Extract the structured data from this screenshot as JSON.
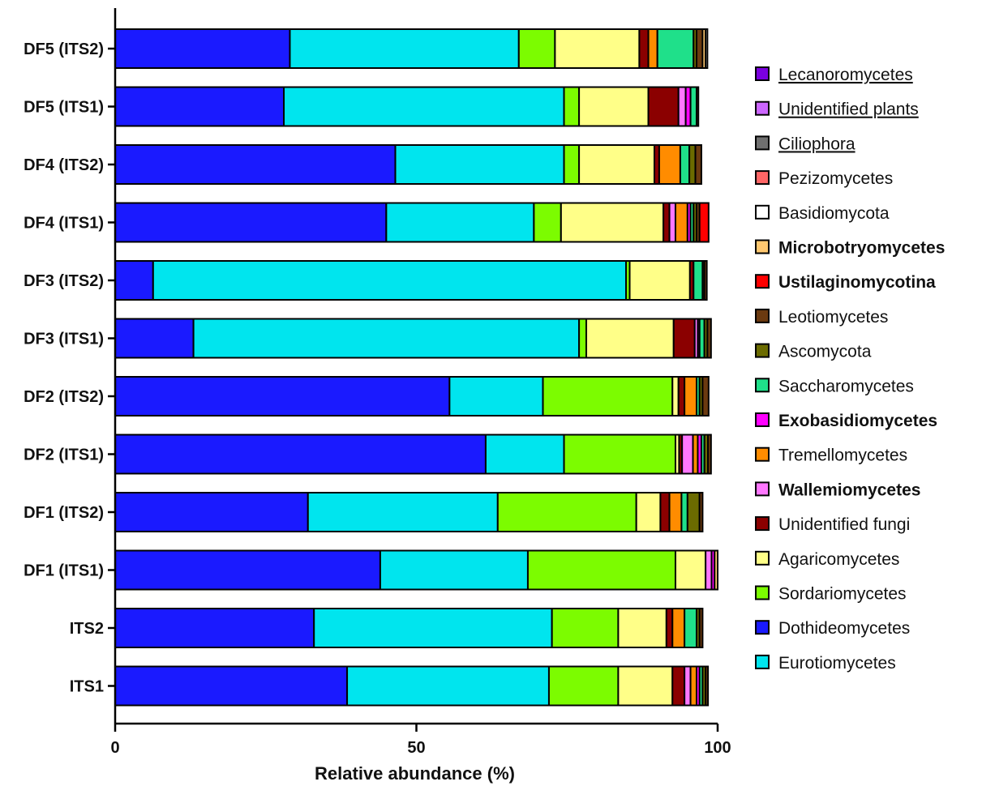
{
  "chart_data": {
    "type": "bar",
    "orientation": "horizontal",
    "stacked": true,
    "xlabel": "Relative abundance (%)",
    "xlim": [
      0,
      100
    ],
    "xticks": [
      0,
      50,
      100
    ],
    "legend_position": "right",
    "categories": [
      "DF5 (ITS2)",
      "DF5 (ITS1)",
      "DF4 (ITS2)",
      "DF4 (ITS1)",
      "DF3 (ITS2)",
      "DF3 (ITS1)",
      "DF2 (ITS2)",
      "DF2 (ITS1)",
      "DF1 (ITS2)",
      "DF1 (ITS1)",
      "ITS2",
      "ITS1"
    ],
    "series": [
      {
        "name": "Dothideomycetes",
        "color": "#1a1aff",
        "values": [
          29.0,
          28.0,
          46.5,
          45.0,
          6.3,
          13.0,
          55.5,
          61.5,
          32.0,
          44.0,
          33.0,
          38.5
        ]
      },
      {
        "name": "Eurotiomycetes",
        "color": "#00e5ee",
        "values": [
          38.0,
          46.5,
          28.0,
          24.5,
          78.5,
          64.0,
          15.5,
          13.0,
          31.5,
          24.5,
          39.5,
          33.5
        ]
      },
      {
        "name": "Sordariomycetes",
        "color": "#7cfc00",
        "values": [
          6.0,
          2.5,
          2.5,
          4.5,
          0.6,
          1.2,
          21.5,
          18.5,
          23.0,
          24.5,
          11.0,
          11.5
        ]
      },
      {
        "name": "Agaricomycetes",
        "color": "#ffff88",
        "values": [
          14.0,
          11.5,
          12.5,
          17.0,
          10.0,
          14.5,
          1.0,
          0.6,
          4.0,
          5.0,
          8.0,
          9.0
        ]
      },
      {
        "name": "Unidentified fungi",
        "color": "#8b0000",
        "values": [
          1.5,
          5.0,
          0.8,
          1.0,
          0.6,
          3.5,
          1.0,
          0.5,
          1.5,
          0.0,
          1.0,
          2.0
        ]
      },
      {
        "name": "Wallemiomycetes",
        "color": "#ff77ff",
        "values": [
          0.0,
          1.2,
          0.0,
          1.0,
          0.0,
          0.5,
          0.0,
          1.8,
          0.0,
          1.0,
          0.0,
          1.0
        ]
      },
      {
        "name": "Tremellomycetes",
        "color": "#ff8c00",
        "values": [
          1.5,
          0.0,
          3.5,
          2.0,
          0.0,
          0.0,
          2.0,
          0.8,
          2.0,
          0.0,
          2.0,
          1.0
        ]
      },
      {
        "name": "Exobasidiomycetes",
        "color": "#ff00ff",
        "values": [
          0.0,
          0.8,
          0.0,
          0.5,
          0.0,
          0.3,
          0.0,
          0.6,
          0.0,
          0.5,
          0.0,
          0.5
        ]
      },
      {
        "name": "Saccharomycetes",
        "color": "#1fe08a",
        "values": [
          6.0,
          1.0,
          1.5,
          0.5,
          1.5,
          0.8,
          0.5,
          0.5,
          1.0,
          0.0,
          2.0,
          0.5
        ]
      },
      {
        "name": "Ascomycota",
        "color": "#6b6b00",
        "values": [
          0.5,
          0.0,
          1.0,
          0.5,
          0.3,
          0.5,
          0.5,
          0.6,
          2.0,
          0.0,
          0.5,
          0.5
        ]
      },
      {
        "name": "Leotiomycetes",
        "color": "#6b3a10",
        "values": [
          1.0,
          0.3,
          1.0,
          0.5,
          0.4,
          0.6,
          1.0,
          0.5,
          0.5,
          0.0,
          0.5,
          0.4
        ]
      },
      {
        "name": "Ustilaginomycotina",
        "color": "#ff0000",
        "values": [
          0.0,
          0.0,
          0.0,
          1.5,
          0.0,
          0.0,
          0.0,
          0.0,
          0.0,
          0.0,
          0.0,
          0.0
        ]
      },
      {
        "name": "Microbotryomycetes",
        "color": "#ffc870",
        "values": [
          0.5,
          0.0,
          0.0,
          0.0,
          0.0,
          0.0,
          0.0,
          0.0,
          0.0,
          0.5,
          0.0,
          0.0
        ]
      },
      {
        "name": "Basidiomycota",
        "color": "#ffffff",
        "values": [
          0.3,
          0.0,
          0.0,
          0.0,
          0.0,
          0.0,
          0.0,
          0.0,
          0.0,
          0.0,
          0.0,
          0.0
        ]
      },
      {
        "name": "Pezizomycetes",
        "color": "#ff6666",
        "values": [
          0.0,
          0.0,
          0.0,
          0.0,
          0.0,
          0.0,
          0.0,
          0.0,
          0.0,
          0.0,
          0.0,
          0.0
        ]
      },
      {
        "name": "Ciliophora",
        "color": "#707070",
        "values": [
          0.0,
          0.0,
          0.0,
          0.0,
          0.0,
          0.0,
          0.0,
          0.0,
          0.0,
          0.0,
          0.0,
          0.0
        ]
      },
      {
        "name": "Unidentified plants",
        "color": "#cc66ff",
        "values": [
          0.0,
          0.0,
          0.0,
          0.0,
          0.0,
          0.0,
          0.0,
          0.0,
          0.0,
          0.0,
          0.0,
          0.0
        ]
      },
      {
        "name": "Lecanoromycetes",
        "color": "#7b00e0",
        "values": [
          0.0,
          0.0,
          0.0,
          0.0,
          0.0,
          0.0,
          0.0,
          0.0,
          0.0,
          0.0,
          0.0,
          0.0
        ]
      }
    ],
    "legend": [
      {
        "name": "Lecanoromycetes",
        "style": "underline"
      },
      {
        "name": "Unidentified plants",
        "style": "underline"
      },
      {
        "name": "Ciliophora",
        "style": "underline"
      },
      {
        "name": "Pezizomycetes",
        "style": "normal"
      },
      {
        "name": "Basidiomycota",
        "style": "normal"
      },
      {
        "name": "Microbotryomycetes",
        "style": "bold"
      },
      {
        "name": "Ustilaginomycotina",
        "style": "bold"
      },
      {
        "name": "Leotiomycetes",
        "style": "normal"
      },
      {
        "name": "Ascomycota",
        "style": "normal"
      },
      {
        "name": "Saccharomycetes",
        "style": "normal"
      },
      {
        "name": "Exobasidiomycetes",
        "style": "bold"
      },
      {
        "name": "Tremellomycetes",
        "style": "normal"
      },
      {
        "name": "Wallemiomycetes",
        "style": "bold"
      },
      {
        "name": "Unidentified fungi",
        "style": "normal"
      },
      {
        "name": "Agaricomycetes",
        "style": "normal"
      },
      {
        "name": "Sordariomycetes",
        "style": "normal"
      },
      {
        "name": "Dothideomycetes",
        "style": "normal"
      },
      {
        "name": "Eurotiomycetes",
        "style": "normal"
      }
    ]
  }
}
